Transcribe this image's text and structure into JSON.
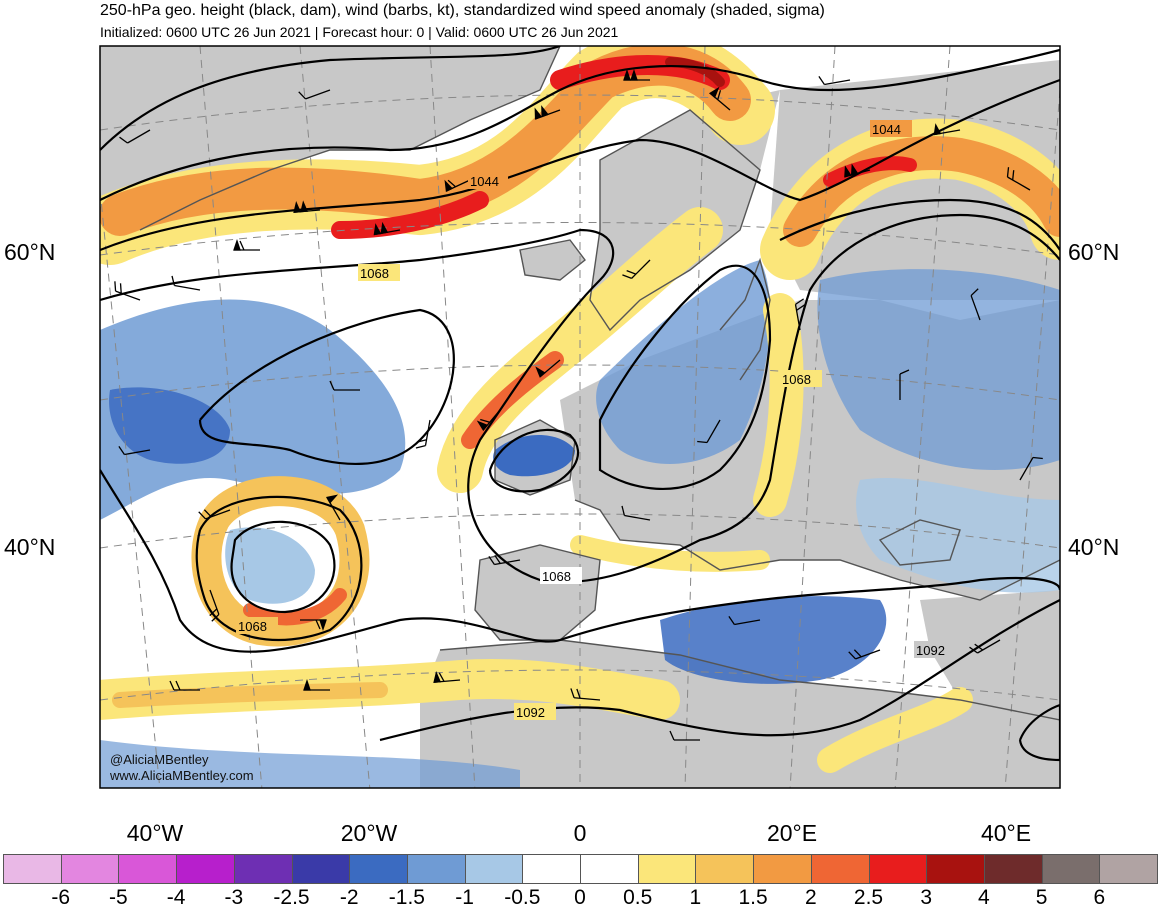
{
  "header": {
    "title": "250-hPa geo. height (black, dam), wind (barbs, kt), standardized wind speed anomaly (shaded, sigma)",
    "subtitle": "Initialized: 0600 UTC 26 Jun 2021 | Forecast hour: 0 | Valid: 0600 UTC 26 Jun 2021"
  },
  "map": {
    "latitude_labels": [
      "60°N",
      "40°N"
    ],
    "longitude_labels": [
      "40°W",
      "20°W",
      "0",
      "20°E",
      "40°E"
    ],
    "contour_labels": [
      "1044",
      "1044",
      "1068",
      "1068",
      "1068",
      "1068",
      "1092",
      "1092"
    ],
    "land_color": "#c8c8c8",
    "ocean_color": "#ffffff"
  },
  "credits": {
    "handle": "@AliciaMBentley",
    "website": "www.AliciaMBentley.com"
  },
  "colorbar": {
    "colors": [
      "#e9b8e6",
      "#e386e0",
      "#d957d8",
      "#b71fcc",
      "#6e2fb3",
      "#3a3aa8",
      "#3b6bc1",
      "#6f9bd4",
      "#a7c8e6",
      "#ffffff",
      "#ffffff",
      "#fbe67a",
      "#f5c35a",
      "#f29a42",
      "#ef6634",
      "#e81d1d",
      "#a8120f",
      "#6e2b2b",
      "#7a6e6c",
      "#b0a3a3"
    ],
    "labels": [
      "-6",
      "-5",
      "-4",
      "-3",
      "-2.5",
      "-2",
      "-1.5",
      "-1",
      "-0.5",
      "0",
      "0.5",
      "1",
      "1.5",
      "2",
      "2.5",
      "3",
      "4",
      "5",
      "6"
    ]
  }
}
